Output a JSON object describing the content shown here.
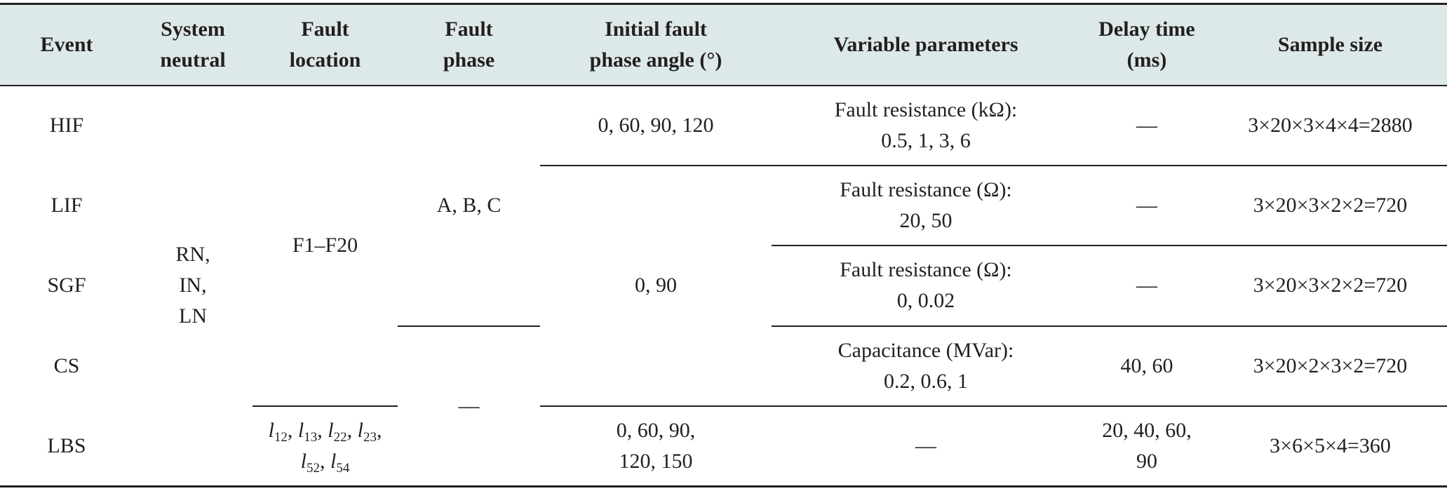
{
  "table": {
    "headers": {
      "event": "Event",
      "system_neutral": [
        "System",
        "neutral"
      ],
      "fault_location": [
        "Fault",
        "location"
      ],
      "fault_phase": [
        "Fault",
        "phase"
      ],
      "initial_angle": [
        "Initial fault",
        "phase angle (°)"
      ],
      "variable_parameters": "Variable parameters",
      "delay_time": [
        "Delay time",
        "(ms)"
      ],
      "sample_size": "Sample size"
    },
    "events": [
      "HIF",
      "LIF",
      "SGF",
      "CS",
      "LBS"
    ],
    "system_neutral": [
      "RN,",
      "IN,",
      "LN"
    ],
    "fault_location": {
      "main": "F1–F20",
      "lbs_line1": [
        {
          "base": "l",
          "sub": "12",
          "sep": ", "
        },
        {
          "base": "l",
          "sub": "13",
          "sep": ", "
        },
        {
          "base": "l",
          "sub": "22",
          "sep": ", "
        },
        {
          "base": "l",
          "sub": "23",
          "sep": ","
        }
      ],
      "lbs_line2": [
        {
          "base": "l",
          "sub": "52",
          "sep": ", "
        },
        {
          "base": "l",
          "sub": "54",
          "sep": ""
        }
      ]
    },
    "fault_phase": {
      "main": "A, B, C",
      "lbs": "—"
    },
    "initial_angle": {
      "hif": "0, 60, 90, 120",
      "lif_sgf_cs": "0, 90",
      "lbs": [
        "0, 60, 90,",
        "120, 150"
      ]
    },
    "variable_parameters": {
      "hif": [
        "Fault resistance (kΩ):",
        "0.5, 1, 3, 6"
      ],
      "lif": [
        "Fault resistance (Ω):",
        "20, 50"
      ],
      "sgf": [
        "Fault resistance (Ω):",
        "0, 0.02"
      ],
      "cs": [
        "Capacitance (MVar):",
        "0.2, 0.6, 1"
      ],
      "lbs": "—"
    },
    "delay_time": {
      "hif": "—",
      "lif": "—",
      "sgf": "—",
      "cs": "40, 60",
      "lbs": [
        "20, 40, 60,",
        "90"
      ]
    },
    "sample_size": {
      "hif": "3×20×3×4×4=2880",
      "lif": "3×20×3×2×2=720",
      "sgf": "3×20×3×2×2=720",
      "cs": "3×20×2×3×2=720",
      "lbs": "3×6×5×4=360"
    }
  }
}
